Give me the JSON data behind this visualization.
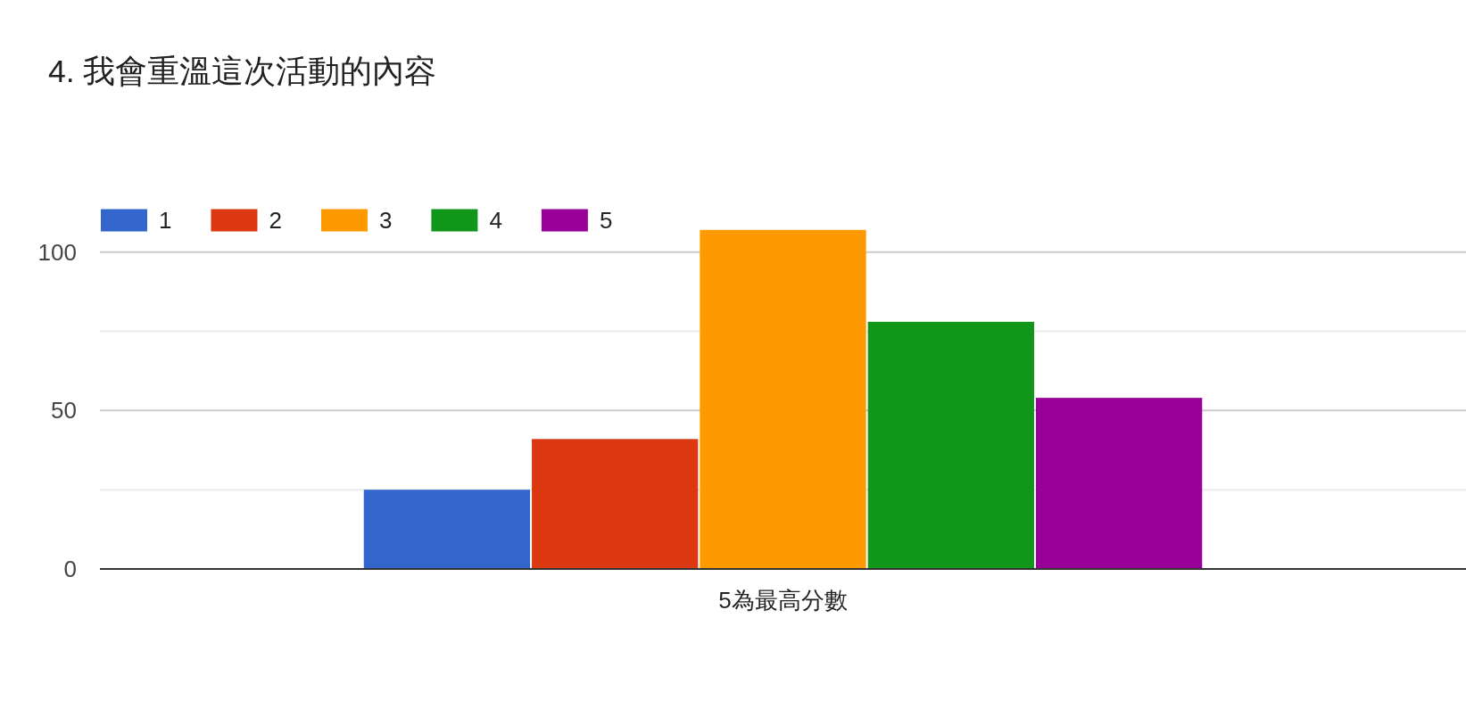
{
  "chart_data": {
    "type": "bar",
    "title": "4. 我會重溫這次活動的內容",
    "categories": [
      "5為最高分數"
    ],
    "series": [
      {
        "name": "1",
        "color": "#3366cc",
        "values": [
          25
        ]
      },
      {
        "name": "2",
        "color": "#dc3912",
        "values": [
          41
        ]
      },
      {
        "name": "3",
        "color": "#ff9900",
        "values": [
          107
        ]
      },
      {
        "name": "4",
        "color": "#109618",
        "values": [
          78
        ]
      },
      {
        "name": "5",
        "color": "#990099",
        "values": [
          54
        ]
      }
    ],
    "ylim": [
      0,
      107
    ],
    "yticks": [
      0,
      {
        "value": 25,
        "label": null
      },
      50,
      {
        "value": 75,
        "label": null
      },
      100
    ],
    "grid": "y",
    "legend": "top left"
  }
}
